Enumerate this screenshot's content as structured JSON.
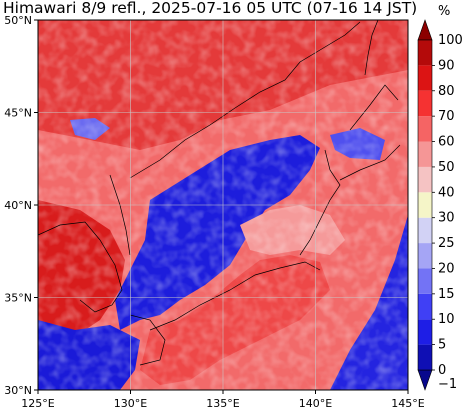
{
  "title": "Himawari 8/9 refl., 2025-07-16 05 UTC (07-16 14 JST)",
  "map": {
    "lon_range": [
      125,
      145
    ],
    "lat_range": [
      30,
      50
    ],
    "lon_ticks": [
      {
        "value": 125,
        "label": "125°E"
      },
      {
        "value": 130,
        "label": "130°E"
      },
      {
        "value": 135,
        "label": "135°E"
      },
      {
        "value": 140,
        "label": "140°E"
      },
      {
        "value": 145,
        "label": "145°E"
      }
    ],
    "lat_ticks": [
      {
        "value": 50,
        "label": "50°N"
      },
      {
        "value": 45,
        "label": "45°N"
      },
      {
        "value": 40,
        "label": "40°N"
      },
      {
        "value": 35,
        "label": "35°N"
      },
      {
        "value": 30,
        "label": "30°N"
      }
    ],
    "grid": true
  },
  "colorbar": {
    "unit": "%",
    "levels": [
      {
        "label": "−1",
        "color": "#08088c"
      },
      {
        "label": "0",
        "color": "#0f0fb4"
      },
      {
        "label": "5",
        "color": "#1e1ee6"
      },
      {
        "label": "10",
        "color": "#4040f5"
      },
      {
        "label": "15",
        "color": "#7373f5"
      },
      {
        "label": "20",
        "color": "#a5a5f5"
      },
      {
        "label": "25",
        "color": "#d2d2f5"
      },
      {
        "label": "30",
        "color": "#f5f5c8"
      },
      {
        "label": "40",
        "color": "#f5c3c3"
      },
      {
        "label": "50",
        "color": "#f59696"
      },
      {
        "label": "60",
        "color": "#f56464"
      },
      {
        "label": "70",
        "color": "#f53232"
      },
      {
        "label": "80",
        "color": "#dc1414"
      },
      {
        "label": "90",
        "color": "#b40a0a"
      },
      {
        "label": "100",
        "color": "#8c0000"
      }
    ]
  }
}
